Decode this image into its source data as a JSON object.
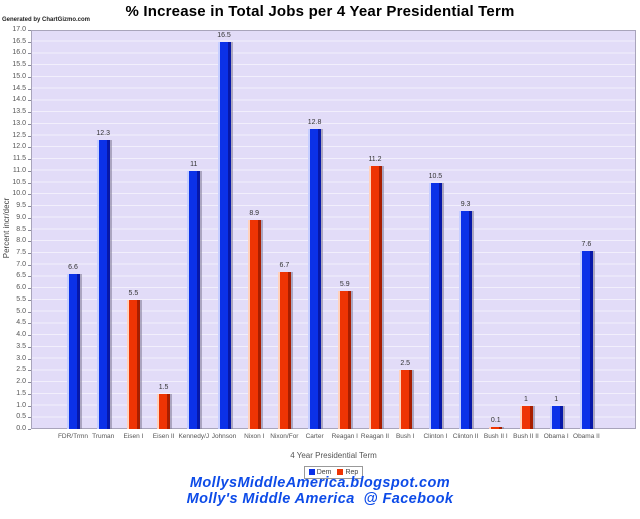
{
  "page": {
    "generator_note": "Generated by ChartGizmo.com",
    "footer": {
      "line1": "MollysMiddleAmerica.blogspot.com",
      "line2": "Molly's Middle America  @ Facebook",
      "color": "#0d4be8"
    }
  },
  "chart_data": {
    "type": "bar",
    "title": "% Increase in Total Jobs per 4 Year Presidential Term",
    "xlabel": "4 Year Presidential Term",
    "ylabel": "Percent incr/decr",
    "ylim": [
      0,
      17
    ],
    "ytick_step": 0.5,
    "grid": true,
    "plot_bg": "#e2dcf8",
    "legend": {
      "position": "bottom",
      "entries": [
        {
          "label": "Dem",
          "color": "#0b31e8"
        },
        {
          "label": "Rep",
          "color": "#ee3404"
        }
      ]
    },
    "categories": [
      "FDR/Trmn",
      "Truman",
      "Eisen I",
      "Eisen II",
      "Kennedy/J",
      "Johnson",
      "Nixon I",
      "Nixon/For",
      "Carter",
      "Reagan I",
      "Reagan II",
      "Bush I",
      "Clinton I",
      "Clinton II",
      "Bush II I",
      "Bush II II",
      "Obama I",
      "Obama II"
    ],
    "values": [
      6.6,
      12.3,
      5.5,
      1.5,
      11,
      16.5,
      8.9,
      6.7,
      12.8,
      5.9,
      11.2,
      2.5,
      10.5,
      9.3,
      0.1,
      1,
      1,
      7.6
    ],
    "value_labels": [
      "6.6",
      "12.3",
      "5.5",
      "1.5",
      "11",
      "16.5",
      "8.9",
      "6.7",
      "12.8",
      "5.9",
      "11.2",
      "2.5",
      "10.5",
      "9.3",
      "0.1",
      "1",
      "1",
      "7.6"
    ],
    "parties": [
      "Dem",
      "Dem",
      "Rep",
      "Rep",
      "Dem",
      "Dem",
      "Rep",
      "Rep",
      "Dem",
      "Rep",
      "Rep",
      "Rep",
      "Dem",
      "Dem",
      "Rep",
      "Rep",
      "Dem",
      "Dem"
    ]
  }
}
